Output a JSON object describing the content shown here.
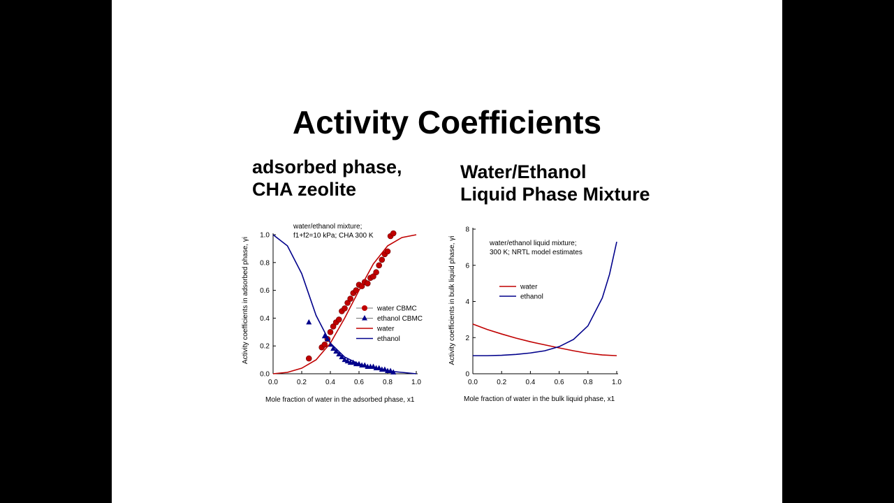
{
  "slide": {
    "title": "Activity Coefficients",
    "left_subtitle": [
      "adsorbed phase,",
      "CHA zeolite"
    ],
    "right_subtitle": [
      "Water/Ethanol",
      "Liquid Phase Mixture"
    ]
  },
  "colors": {
    "water": "#c00000",
    "ethanol": "#00008b",
    "background": "#000000",
    "slide": "#ffffff"
  },
  "chart_data": [
    {
      "type": "line",
      "annotation": [
        "water/ethanol mixture;",
        "f1+f2=10 kPa; CHA 300 K"
      ],
      "xlabel": "Mole fraction of water in the adsorbed phase, x1",
      "ylabel": "Activity coefficients in adsorbed phase, γi",
      "xlim": [
        0,
        1
      ],
      "ylim": [
        0,
        1
      ],
      "xticks": [
        "0.0",
        "0.2",
        "0.4",
        "0.6",
        "0.8",
        "1.0"
      ],
      "yticks": [
        "0.0",
        "0.2",
        "0.4",
        "0.6",
        "0.8",
        "1.0"
      ],
      "legend": [
        "water CBMC",
        "ethanol CBMC",
        "water",
        "ethanol"
      ],
      "legend_position": "right",
      "series": [
        {
          "name": "water CBMC",
          "kind": "scatter",
          "marker": "circle",
          "color": "#c00000",
          "x": [
            0.25,
            0.34,
            0.36,
            0.38,
            0.4,
            0.42,
            0.44,
            0.46,
            0.48,
            0.5,
            0.52,
            0.54,
            0.56,
            0.58,
            0.6,
            0.62,
            0.64,
            0.66,
            0.68,
            0.7,
            0.72,
            0.74,
            0.76,
            0.78,
            0.8,
            0.82,
            0.84
          ],
          "y": [
            0.11,
            0.19,
            0.21,
            0.25,
            0.3,
            0.34,
            0.37,
            0.39,
            0.45,
            0.47,
            0.51,
            0.54,
            0.58,
            0.6,
            0.64,
            0.63,
            0.66,
            0.65,
            0.69,
            0.7,
            0.73,
            0.78,
            0.82,
            0.86,
            0.88,
            0.99,
            1.01
          ]
        },
        {
          "name": "ethanol CBMC",
          "kind": "scatter",
          "marker": "triangle",
          "color": "#00008b",
          "x": [
            0.25,
            0.36,
            0.38,
            0.4,
            0.42,
            0.44,
            0.46,
            0.48,
            0.5,
            0.52,
            0.54,
            0.56,
            0.58,
            0.6,
            0.62,
            0.64,
            0.66,
            0.68,
            0.7,
            0.72,
            0.74,
            0.76,
            0.78,
            0.8,
            0.82,
            0.84
          ],
          "y": [
            0.37,
            0.27,
            0.25,
            0.21,
            0.18,
            0.16,
            0.14,
            0.12,
            0.1,
            0.09,
            0.08,
            0.08,
            0.07,
            0.07,
            0.06,
            0.06,
            0.05,
            0.05,
            0.05,
            0.04,
            0.04,
            0.03,
            0.03,
            0.02,
            0.02,
            0.01
          ]
        },
        {
          "name": "water",
          "kind": "line",
          "color": "#c00000",
          "x": [
            0,
            0.1,
            0.2,
            0.3,
            0.4,
            0.5,
            0.6,
            0.7,
            0.8,
            0.9,
            1.0
          ],
          "y": [
            0.0,
            0.01,
            0.04,
            0.1,
            0.22,
            0.4,
            0.6,
            0.79,
            0.92,
            0.98,
            1.0
          ]
        },
        {
          "name": "ethanol",
          "kind": "line",
          "color": "#00008b",
          "x": [
            0,
            0.1,
            0.2,
            0.3,
            0.4,
            0.5,
            0.6,
            0.7,
            0.8,
            0.9,
            1.0
          ],
          "y": [
            1.0,
            0.92,
            0.72,
            0.42,
            0.22,
            0.12,
            0.07,
            0.04,
            0.02,
            0.01,
            0.0
          ]
        }
      ]
    },
    {
      "type": "line",
      "annotation": [
        "water/ethanol liquid mixture;",
        "300 K; NRTL model estimates"
      ],
      "xlabel": "Mole fraction of water in the bulk liquid phase, x1",
      "ylabel": "Activity coefficients in bulk liquid phase, γi",
      "xlim": [
        0,
        1
      ],
      "ylim": [
        0,
        8
      ],
      "xticks": [
        "0.0",
        "0.2",
        "0.4",
        "0.6",
        "0.8",
        "1.0"
      ],
      "yticks": [
        "0",
        "2",
        "4",
        "6",
        "8"
      ],
      "legend": [
        "water",
        "ethanol"
      ],
      "legend_position": "center-left",
      "series": [
        {
          "name": "water",
          "kind": "line",
          "color": "#c00000",
          "x": [
            0,
            0.1,
            0.2,
            0.3,
            0.4,
            0.5,
            0.6,
            0.7,
            0.8,
            0.9,
            1.0
          ],
          "y": [
            2.75,
            2.45,
            2.2,
            1.97,
            1.77,
            1.6,
            1.43,
            1.27,
            1.13,
            1.04,
            1.0
          ]
        },
        {
          "name": "ethanol",
          "kind": "line",
          "color": "#00008b",
          "x": [
            0,
            0.1,
            0.2,
            0.3,
            0.4,
            0.5,
            0.6,
            0.7,
            0.8,
            0.9,
            0.95,
            1.0
          ],
          "y": [
            1.0,
            1.0,
            1.02,
            1.07,
            1.15,
            1.27,
            1.5,
            1.9,
            2.65,
            4.2,
            5.5,
            7.3
          ]
        }
      ]
    }
  ]
}
